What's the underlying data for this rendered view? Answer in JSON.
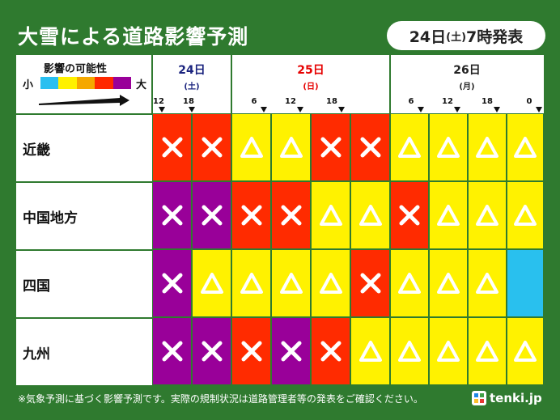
{
  "title": "大雪による道路影響予測",
  "issued": {
    "day": "24日",
    "weekday": "(土)",
    "time": "7時発表"
  },
  "legend": {
    "title": "影響の可能性",
    "small": "小",
    "large": "大",
    "colors": [
      "#29bff0",
      "#fff100",
      "#f5a800",
      "#ff2800",
      "#990099"
    ]
  },
  "colors": {
    "cyan": "#29c0ee",
    "yellow": "#fff200",
    "orange": "#f3a200",
    "red": "#ff2b00",
    "purple": "#990099",
    "background": "#2f7a2f"
  },
  "days": [
    {
      "label": "24日",
      "weekday": "(土)",
      "color": "#1a237e"
    },
    {
      "label": "25日",
      "weekday": "(日)",
      "color": "#e60000"
    },
    {
      "label": "26日",
      "weekday": "(月)",
      "color": "#222222"
    }
  ],
  "ticks": [
    "12",
    "18",
    "6",
    "12",
    "18",
    "6",
    "12",
    "18",
    "0"
  ],
  "regions": [
    {
      "name": "近畿",
      "cells": [
        "red-x",
        "red-x",
        "yellow-tri",
        "yellow-tri",
        "red-x",
        "red-x",
        "yellow-tri",
        "yellow-tri",
        "yellow-tri",
        "yellow-tri"
      ]
    },
    {
      "name": "中国地方",
      "cells": [
        "purple-x",
        "purple-x",
        "red-x",
        "red-x",
        "yellow-tri",
        "yellow-tri",
        "red-x",
        "yellow-tri",
        "yellow-tri",
        "yellow-tri"
      ]
    },
    {
      "name": "四国",
      "cells": [
        "purple-x",
        "yellow-tri",
        "yellow-tri",
        "yellow-tri",
        "yellow-tri",
        "red-x",
        "yellow-tri",
        "yellow-tri",
        "yellow-tri",
        "cyan-none"
      ]
    },
    {
      "name": "九州",
      "cells": [
        "purple-x",
        "purple-x",
        "red-x",
        "purple-x",
        "red-x",
        "yellow-tri",
        "yellow-tri",
        "yellow-tri",
        "yellow-tri",
        "yellow-tri"
      ]
    }
  ],
  "footnote": "※気象予測に基づく影響予測です。実際の規制状況は道路管理者等の発表をご確認ください。",
  "brand": "tenki.jp"
}
